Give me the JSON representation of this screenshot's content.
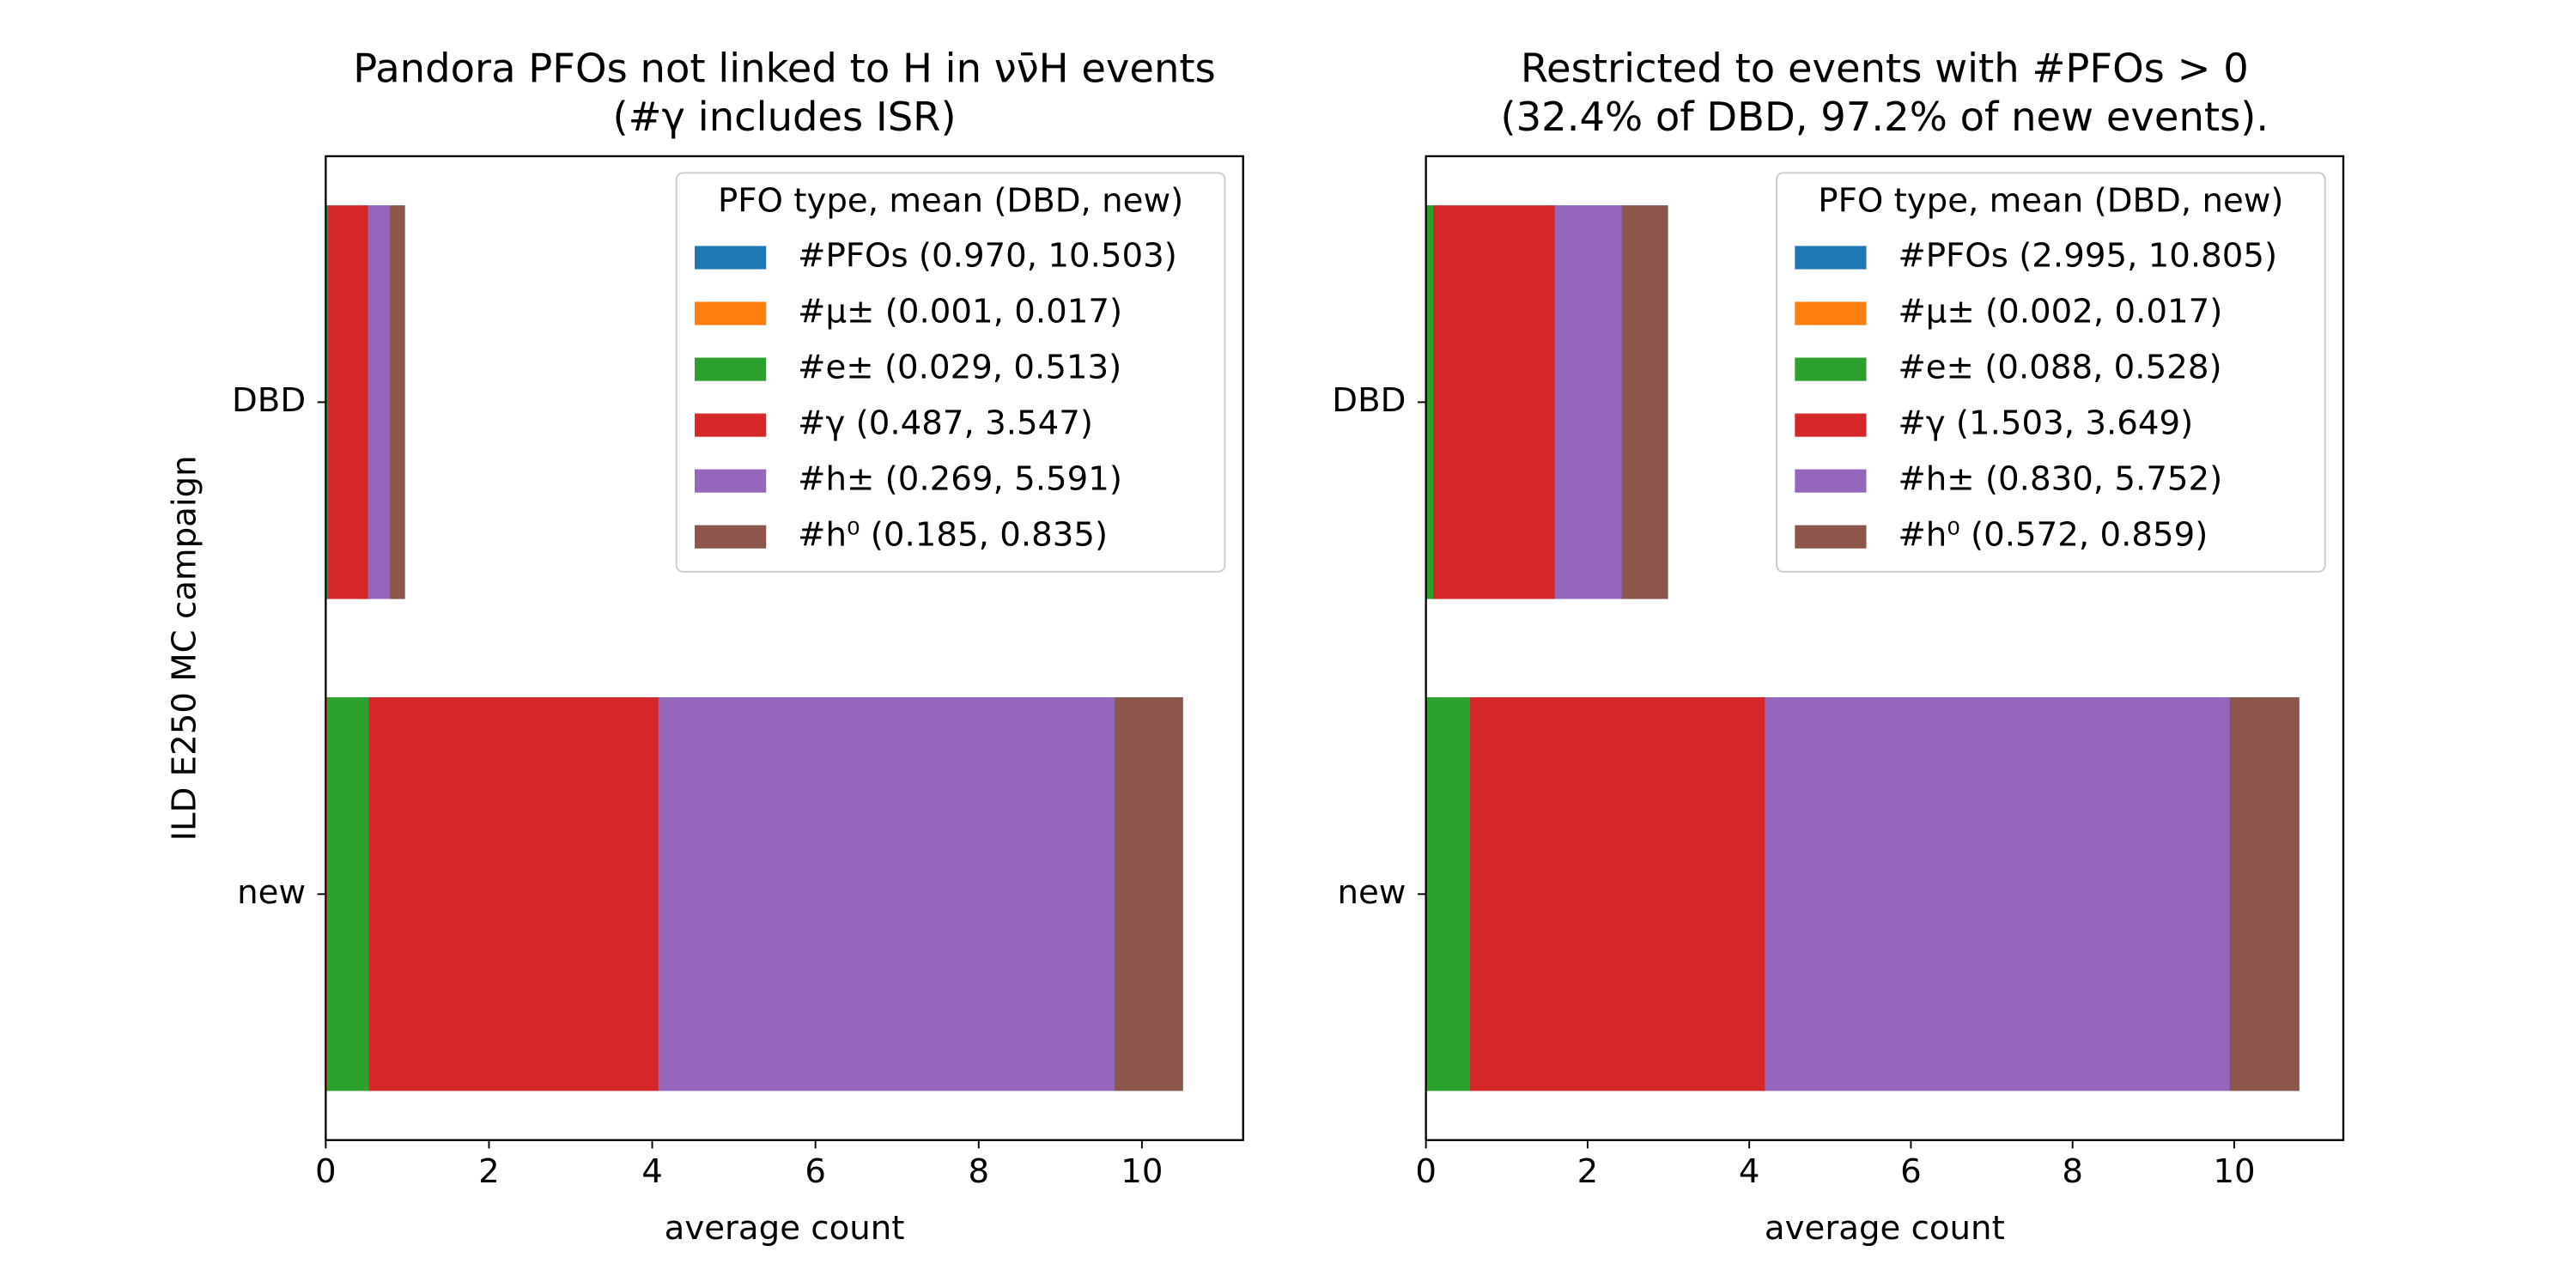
{
  "chart_data": [
    {
      "type": "barh",
      "title": "Pandora PFOs not linked to H in  νν̄H events",
      "subtitle": "(#γ includes ISR)",
      "xlabel": "average count",
      "ylabel": "ILD E250 MC campaign",
      "categories": [
        "DBD",
        "new"
      ],
      "xlim": [
        0,
        11.24
      ],
      "xticks": [
        0,
        2,
        4,
        6,
        8,
        10
      ],
      "legend_title": "PFO type,  mean (DBD, new)",
      "legend": "upper right",
      "series": [
        {
          "name": "#PFOs (0.970, 10.503)",
          "color": "#1f77b4",
          "values": [
            0.97,
            10.503
          ]
        },
        {
          "name": "#μ± (0.001, 0.017)",
          "color": "#ff7f0e",
          "values": [
            0.001,
            0.017
          ]
        },
        {
          "name": "#e± (0.029, 0.513)",
          "color": "#2ca02c",
          "values": [
            0.029,
            0.513
          ]
        },
        {
          "name": "#γ   (0.487, 3.547)",
          "color": "#d62728",
          "values": [
            0.487,
            3.547
          ]
        },
        {
          "name": "#h± (0.269, 5.591)",
          "color": "#9467bd",
          "values": [
            0.269,
            5.591
          ]
        },
        {
          "name": "#h⁰ (0.185, 0.835)",
          "color": "#8c564b",
          "values": [
            0.185,
            0.835
          ]
        }
      ]
    },
    {
      "type": "barh",
      "title": "Restricted to events with #PFOs > 0",
      "subtitle": "(32.4% of DBD, 97.2% of new events).",
      "xlabel": "average count",
      "categories": [
        "DBD",
        "new"
      ],
      "xlim": [
        0,
        11.35
      ],
      "xticks": [
        0,
        2,
        4,
        6,
        8,
        10
      ],
      "legend_title": "PFO type,  mean (DBD, new)",
      "legend": "upper right",
      "series": [
        {
          "name": "#PFOs (2.995, 10.805)",
          "color": "#1f77b4",
          "values": [
            2.995,
            10.805
          ]
        },
        {
          "name": "#μ± (0.002, 0.017)",
          "color": "#ff7f0e",
          "values": [
            0.002,
            0.017
          ]
        },
        {
          "name": "#e± (0.088, 0.528)",
          "color": "#2ca02c",
          "values": [
            0.088,
            0.528
          ]
        },
        {
          "name": "#γ   (1.503, 3.649)",
          "color": "#d62728",
          "values": [
            1.503,
            3.649
          ]
        },
        {
          "name": "#h± (0.830, 5.752)",
          "color": "#9467bd",
          "values": [
            0.83,
            5.752
          ]
        },
        {
          "name": "#h⁰ (0.572, 0.859)",
          "color": "#8c564b",
          "values": [
            0.572,
            0.859
          ]
        }
      ]
    }
  ]
}
